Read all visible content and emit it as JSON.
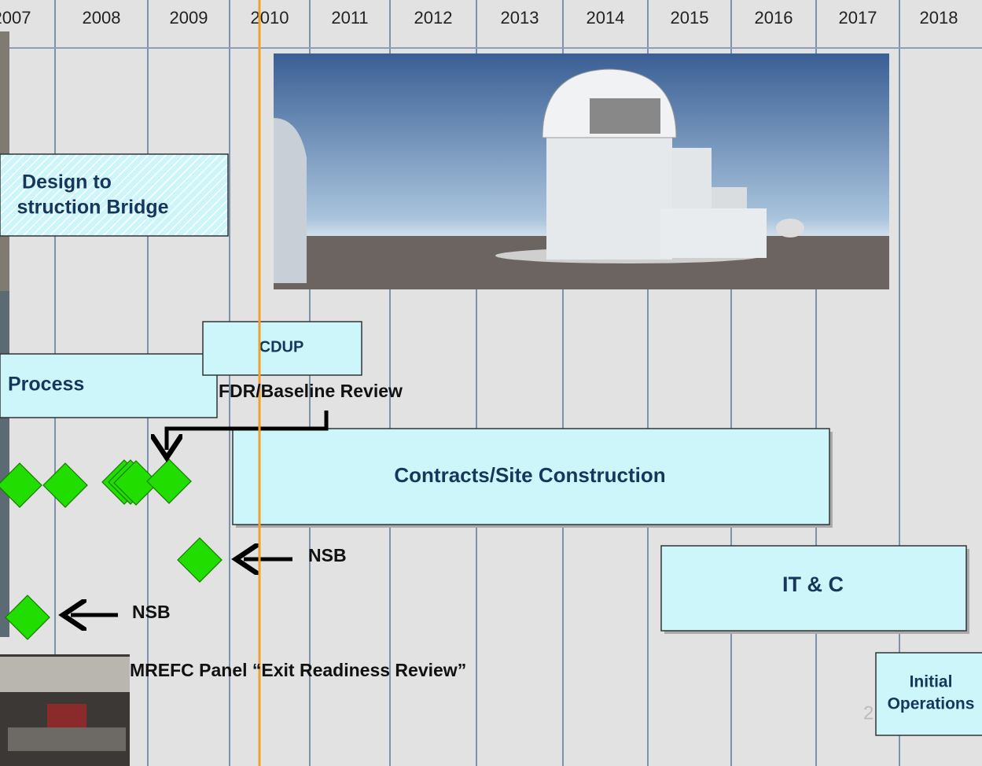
{
  "years": [
    "2007",
    "2008",
    "2009",
    "2010",
    "2011",
    "2012",
    "2013",
    "2014",
    "2015",
    "2016",
    "2017",
    "2018"
  ],
  "boxes": {
    "design_bridge": [
      "Design to",
      "struction Bridge"
    ],
    "cdup": "CDUP",
    "process": "Process",
    "contracts": "Contracts/Site Construction",
    "itc": "IT & C",
    "initial_ops": [
      "Initial",
      "Operations"
    ]
  },
  "annotations": {
    "fdr": "FDR/Baseline Review",
    "nsb_1": "NSB",
    "nsb_2": "NSB",
    "mrefc": "MREFC Panel “Exit Readiness Review”",
    "page_number": "2"
  }
}
